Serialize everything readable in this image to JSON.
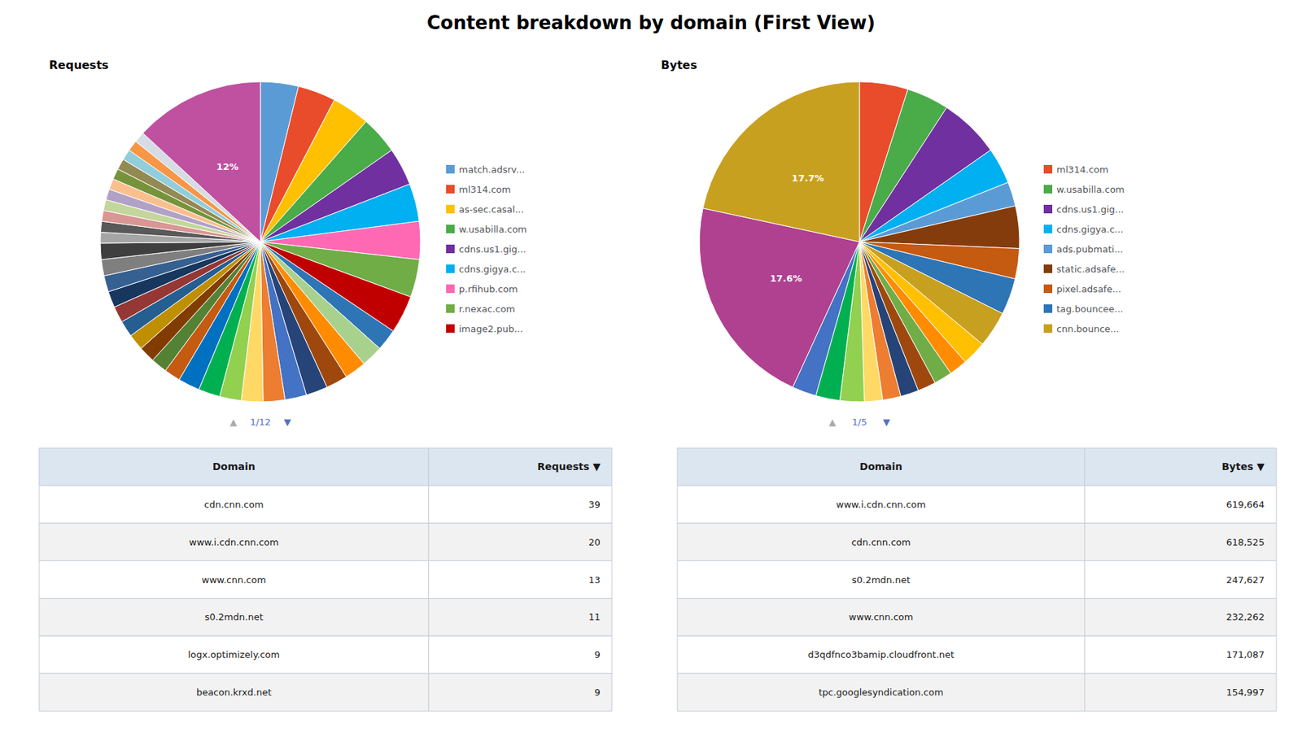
{
  "title": "Content breakdown by domain (First View)",
  "chart_data": [
    {
      "type": "pie",
      "title": "Requests",
      "legend": "right",
      "categories": [
        "match.adsrv...",
        "ml314.com",
        "as-sec.casal...",
        "w.usabilla.com",
        "cdns.us1.gig...",
        "cdns.gigya.c...",
        "p.rfihub.com",
        "r.nexac.com",
        "image2.pub...",
        null,
        null,
        null,
        null,
        null,
        null,
        null,
        null,
        null,
        null,
        null,
        null,
        null,
        null,
        null,
        null,
        null,
        null,
        null,
        null,
        null,
        null,
        null,
        null,
        null,
        null,
        null,
        null,
        null,
        null,
        null,
        null,
        null
      ],
      "values": [
        3.5,
        3.5,
        3.5,
        3.5,
        3.5,
        3.5,
        3.5,
        3.5,
        3.5,
        2.0,
        2.0,
        2.0,
        2.0,
        2.0,
        2.0,
        2.0,
        2.0,
        2.0,
        2.0,
        2.0,
        1.5,
        1.5,
        1.5,
        1.5,
        1.5,
        1.5,
        1.5,
        1.5,
        1.5,
        1.5,
        1.0,
        1.0,
        1.0,
        1.0,
        1.0,
        1.0,
        1.0,
        1.0,
        1.0,
        1.0,
        1.0,
        12.0
      ],
      "value_labels": [
        null,
        null,
        null,
        null,
        null,
        null,
        null,
        null,
        null,
        null,
        null,
        null,
        null,
        null,
        null,
        null,
        null,
        null,
        null,
        null,
        null,
        null,
        null,
        null,
        null,
        null,
        null,
        null,
        null,
        null,
        null,
        null,
        null,
        null,
        null,
        null,
        null,
        null,
        null,
        null,
        null,
        "12%"
      ],
      "colors": [
        "#5b9bd5",
        "#e84c2b",
        "#ffc000",
        "#4aab49",
        "#7030a0",
        "#00b0f0",
        "#ff69b4",
        "#70ad47",
        "#c00000",
        "#2e75b6",
        "#a9d18e",
        "#ff8c00",
        "#9e480e",
        "#264478",
        "#4472c4",
        "#ed7d31",
        "#ffd966",
        "#92d050",
        "#00b050",
        "#0070c0",
        "#c55a11",
        "#548235",
        "#833c00",
        "#bf8f00",
        "#255e91",
        "#953734",
        "#17375e",
        "#366092",
        "#7f7f7f",
        "#3f3f3f",
        "#a5a5a5",
        "#595959",
        "#d99694",
        "#c3d69b",
        "#b2a1c7",
        "#fabf8f",
        "#76933c",
        "#938953",
        "#92cddc",
        "#f79646",
        "#d6dce4",
        "#c050a0"
      ],
      "annotations": [
        "▲",
        "1/12",
        "▼"
      ]
    },
    {
      "type": "pie",
      "title": "Bytes",
      "legend": "right",
      "categories": [
        "ml314.com",
        "w.usabilla.com",
        "cdns.us1.gig...",
        "cdns.gigya.c...",
        "ads.pubmati...",
        "static.adsafe...",
        "pixel.adsafe...",
        "tag.bouncee...",
        "cnn.bounce...",
        null,
        null,
        null,
        null,
        null,
        null,
        null,
        null,
        null,
        null,
        null,
        null
      ],
      "values": [
        4.0,
        3.5,
        5.0,
        3.0,
        2.0,
        3.5,
        2.5,
        3.0,
        3.0,
        2.0,
        1.5,
        1.5,
        1.5,
        1.5,
        1.5,
        1.5,
        2.0,
        2.0,
        2.0,
        17.6,
        17.7
      ],
      "value_labels": [
        null,
        null,
        null,
        null,
        null,
        null,
        null,
        null,
        null,
        null,
        null,
        null,
        null,
        null,
        null,
        null,
        null,
        null,
        null,
        "17.6%",
        "17.7%"
      ],
      "colors": [
        "#e84c2b",
        "#4aab49",
        "#7030a0",
        "#00b0f0",
        "#5b9bd5",
        "#843c0c",
        "#c55a11",
        "#2e75b6",
        "#c8a020",
        "#ffc000",
        "#ff8c00",
        "#70ad47",
        "#9e480e",
        "#264478",
        "#ed7d31",
        "#ffd966",
        "#92d050",
        "#00b050",
        "#4472c4",
        "#b04090",
        "#c8a020"
      ],
      "annotations": [
        "▲",
        "1/5",
        "▼"
      ]
    },
    {
      "type": "table",
      "color": "#dce6f1",
      "headers": [
        "Domain",
        "Requests ▼"
      ],
      "rows": [
        [
          "cdn.cnn.com",
          "39"
        ],
        [
          "www.i.cdn.cnn.com",
          "20"
        ],
        [
          "www.cnn.com",
          "13"
        ],
        [
          "s0.2mdn.net",
          "11"
        ],
        [
          "logx.optimizely.com",
          "9"
        ],
        [
          "beacon.krxd.net",
          "9"
        ]
      ]
    },
    {
      "type": "table",
      "color": "#dce6f1",
      "headers": [
        "Domain",
        "Bytes ▼"
      ],
      "rows": [
        [
          "www.i.cdn.cnn.com",
          "619,664"
        ],
        [
          "cdn.cnn.com",
          "618,525"
        ],
        [
          "s0.2mdn.net",
          "247,627"
        ],
        [
          "www.cnn.com",
          "232,262"
        ],
        [
          "d3qdfnco3bamip.cloudfront.net",
          "171,087"
        ],
        [
          "tpc.googlesyndication.com",
          "154,997"
        ]
      ]
    }
  ]
}
